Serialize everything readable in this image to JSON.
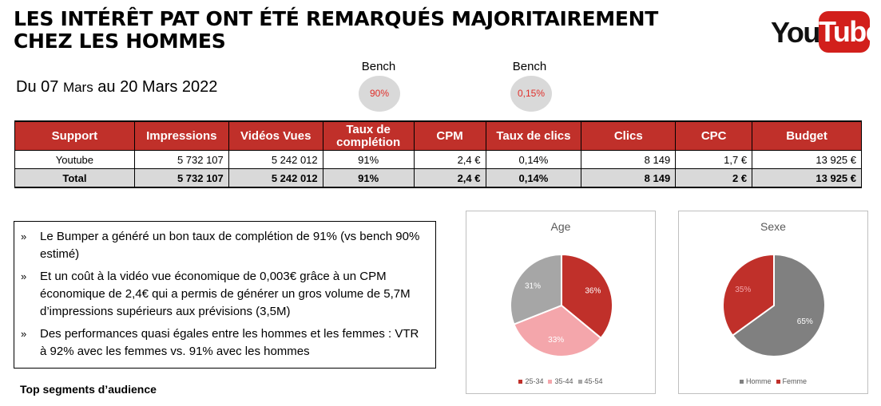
{
  "header": {
    "title_line1": "LES INTÉRÊT PAT ONT ÉTÉ REMARQUÉS MAJORITAIREMENT",
    "title_line2": "CHEZ LES HOMMES",
    "logo_you": "You",
    "logo_tube": "Tube",
    "period_du": "Du 07",
    "period_mars1": "Mars",
    "period_au": "au 20",
    "period_mars2": "Mars 2022"
  },
  "bench": [
    {
      "label": "Bench",
      "value": "90%"
    },
    {
      "label": "Bench",
      "value": "0,15%"
    }
  ],
  "table": {
    "headers": [
      "Support",
      "Impressions",
      "Vidéos Vues",
      "Taux de complétion",
      "CPM",
      "Taux de clics",
      "Clics",
      "CPC",
      "Budget"
    ],
    "rows": [
      [
        "Youtube",
        "5 732 107",
        "5 242 012",
        "91%",
        "2,4 €",
        "0,14%",
        "8 149",
        "1,7 €",
        "13 925 €"
      ]
    ],
    "total": [
      "Total",
      "5 732 107",
      "5 242 012",
      "91%",
      "2,4 €",
      "0,14%",
      "8 149",
      "2 €",
      "13 925 €"
    ]
  },
  "bullets": {
    "marker": "»",
    "items": [
      "Le Bumper a généré un bon taux de complétion de 91% (vs bench 90% estimé)",
      "Et un coût à la vidéo vue économique de 0,003€ grâce à un CPM économique de 2,4€ qui a permis de générer un gros volume de 5,7M d’impressions supérieurs aux prévisions (3,5M)",
      "Des performances quasi égales entre les hommes et les femmes : VTR à 92% avec les femmes vs. 91% avec les hommes"
    ]
  },
  "segments_label": "Top segments d’audience",
  "chart_data": [
    {
      "type": "pie",
      "title": "Age",
      "categories": [
        "25-34",
        "35-44",
        "45-54"
      ],
      "values": [
        36,
        33,
        31
      ],
      "value_labels": [
        "36%",
        "33%",
        "31%"
      ],
      "colors": [
        "#c0302a",
        "#f4a6ab",
        "#a6a6a6"
      ],
      "label_colors": [
        "#ffffff",
        "#ffffff",
        "#ffffff"
      ],
      "legend": "bottom"
    },
    {
      "type": "pie",
      "title": "Sexe",
      "categories": [
        "Homme",
        "Femme"
      ],
      "values": [
        65,
        35
      ],
      "value_labels": [
        "65%",
        "35%"
      ],
      "colors": [
        "#808080",
        "#c0302a"
      ],
      "label_colors": [
        "#ffffff",
        "#f4a6ab"
      ],
      "legend": "bottom"
    }
  ]
}
